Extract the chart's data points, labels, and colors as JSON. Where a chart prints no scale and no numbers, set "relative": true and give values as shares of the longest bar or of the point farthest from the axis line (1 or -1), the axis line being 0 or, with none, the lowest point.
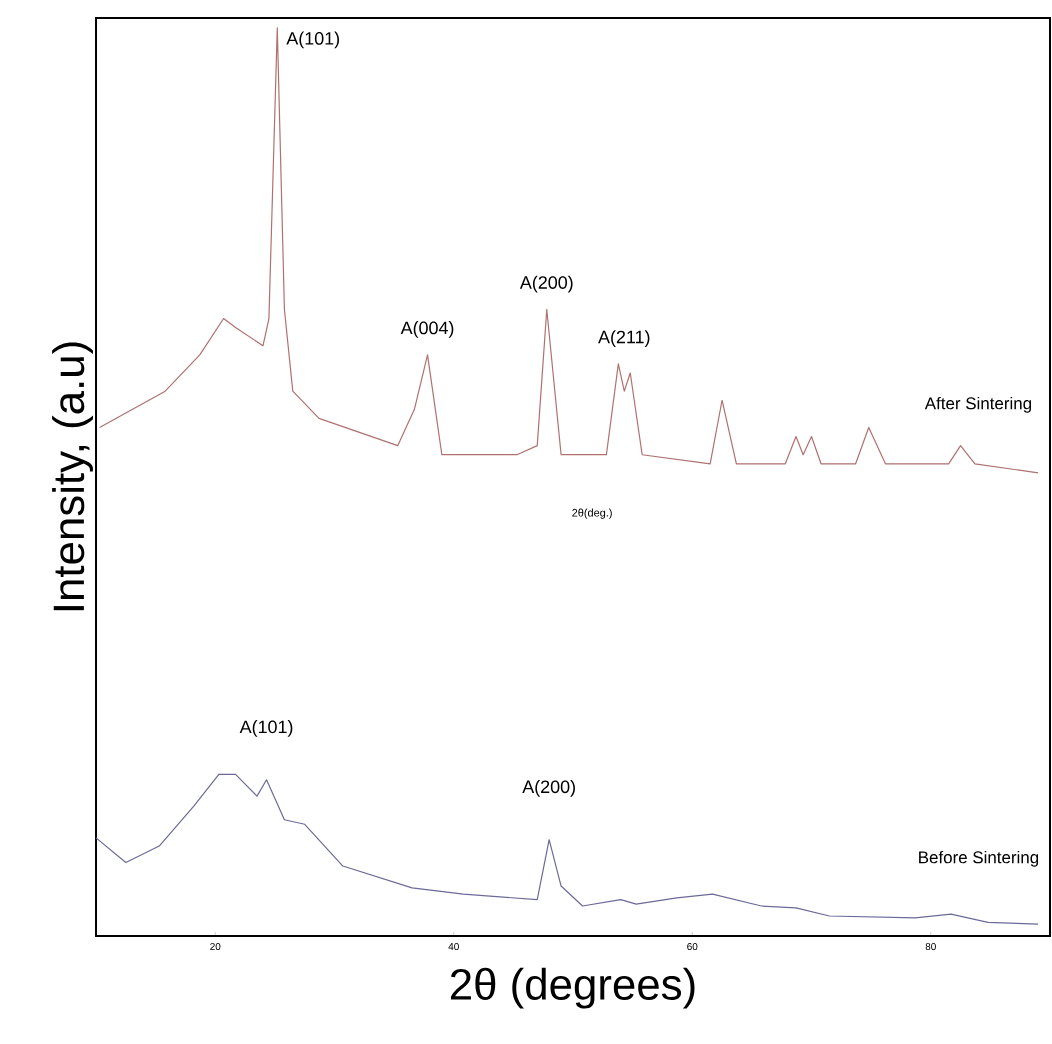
{
  "chart_data": {
    "type": "line",
    "relative": true,
    "xlabel": "2θ (degrees)",
    "ylabel": "Intensity, (a.u)",
    "xlim": [
      10,
      90
    ],
    "xticks": [
      20,
      40,
      60,
      80
    ],
    "grid": false,
    "marker": "none",
    "line_style": "solid",
    "series": [
      {
        "name": "After Sintering",
        "color": "#b07070",
        "x": [
          10.3,
          15.8,
          18.7,
          20.7,
          21.7,
          24,
          24.5,
          25.2,
          25.8,
          26.5,
          28.7,
          35.3,
          36.7,
          37.8,
          39,
          45.3,
          47,
          47.8,
          49,
          52.8,
          53.8,
          54.3,
          54.8,
          55.8,
          61.5,
          62.5,
          63.7,
          67.8,
          68.7,
          69.3,
          70,
          70.8,
          73.7,
          74.8,
          76.2,
          81.5,
          82.5,
          83.7,
          89
        ],
        "values": [
          0.56,
          0.6,
          0.64,
          0.68,
          0.67,
          0.65,
          0.68,
          1,
          0.69,
          0.6,
          0.57,
          0.54,
          0.58,
          0.64,
          0.53,
          0.53,
          0.54,
          0.69,
          0.53,
          0.53,
          0.63,
          0.6,
          0.62,
          0.53,
          0.52,
          0.59,
          0.52,
          0.52,
          0.55,
          0.53,
          0.55,
          0.52,
          0.52,
          0.56,
          0.52,
          0.52,
          0.54,
          0.52,
          0.51
        ]
      },
      {
        "name": "Before Sintering",
        "color": "#6a6a9a",
        "x": [
          10,
          12.5,
          15.3,
          18.2,
          20.3,
          21.7,
          23.5,
          24.3,
          25.8,
          27.5,
          30.7,
          36.5,
          40.8,
          47,
          48,
          49,
          50.8,
          54,
          55.3,
          58.7,
          61.7,
          65.8,
          68.7,
          71.5,
          78.7,
          81.7,
          84.8,
          89
        ],
        "values": [
          0.108,
          0.081,
          0.099,
          0.143,
          0.178,
          0.178,
          0.154,
          0.172,
          0.128,
          0.123,
          0.077,
          0.053,
          0.046,
          0.04,
          0.106,
          0.055,
          0.033,
          0.04,
          0.035,
          0.042,
          0.046,
          0.033,
          0.031,
          0.022,
          0.02,
          0.024,
          0.015,
          0.013
        ]
      }
    ],
    "annotations": [
      {
        "text": "A(101)",
        "x": 25.2,
        "y": 1
      },
      {
        "text": "A(004)",
        "x": 37.8,
        "y": 0.64
      },
      {
        "text": "A(200)",
        "x": 47.8,
        "y": 0.69
      },
      {
        "text": "A(211)",
        "x": 54.3,
        "y": 0.63
      },
      {
        "text": "A(101)",
        "x": 24.3,
        "y": 0.172
      },
      {
        "text": "A(200)",
        "x": 48,
        "y": 0.106
      },
      "2θ(deg.)"
    ]
  }
}
